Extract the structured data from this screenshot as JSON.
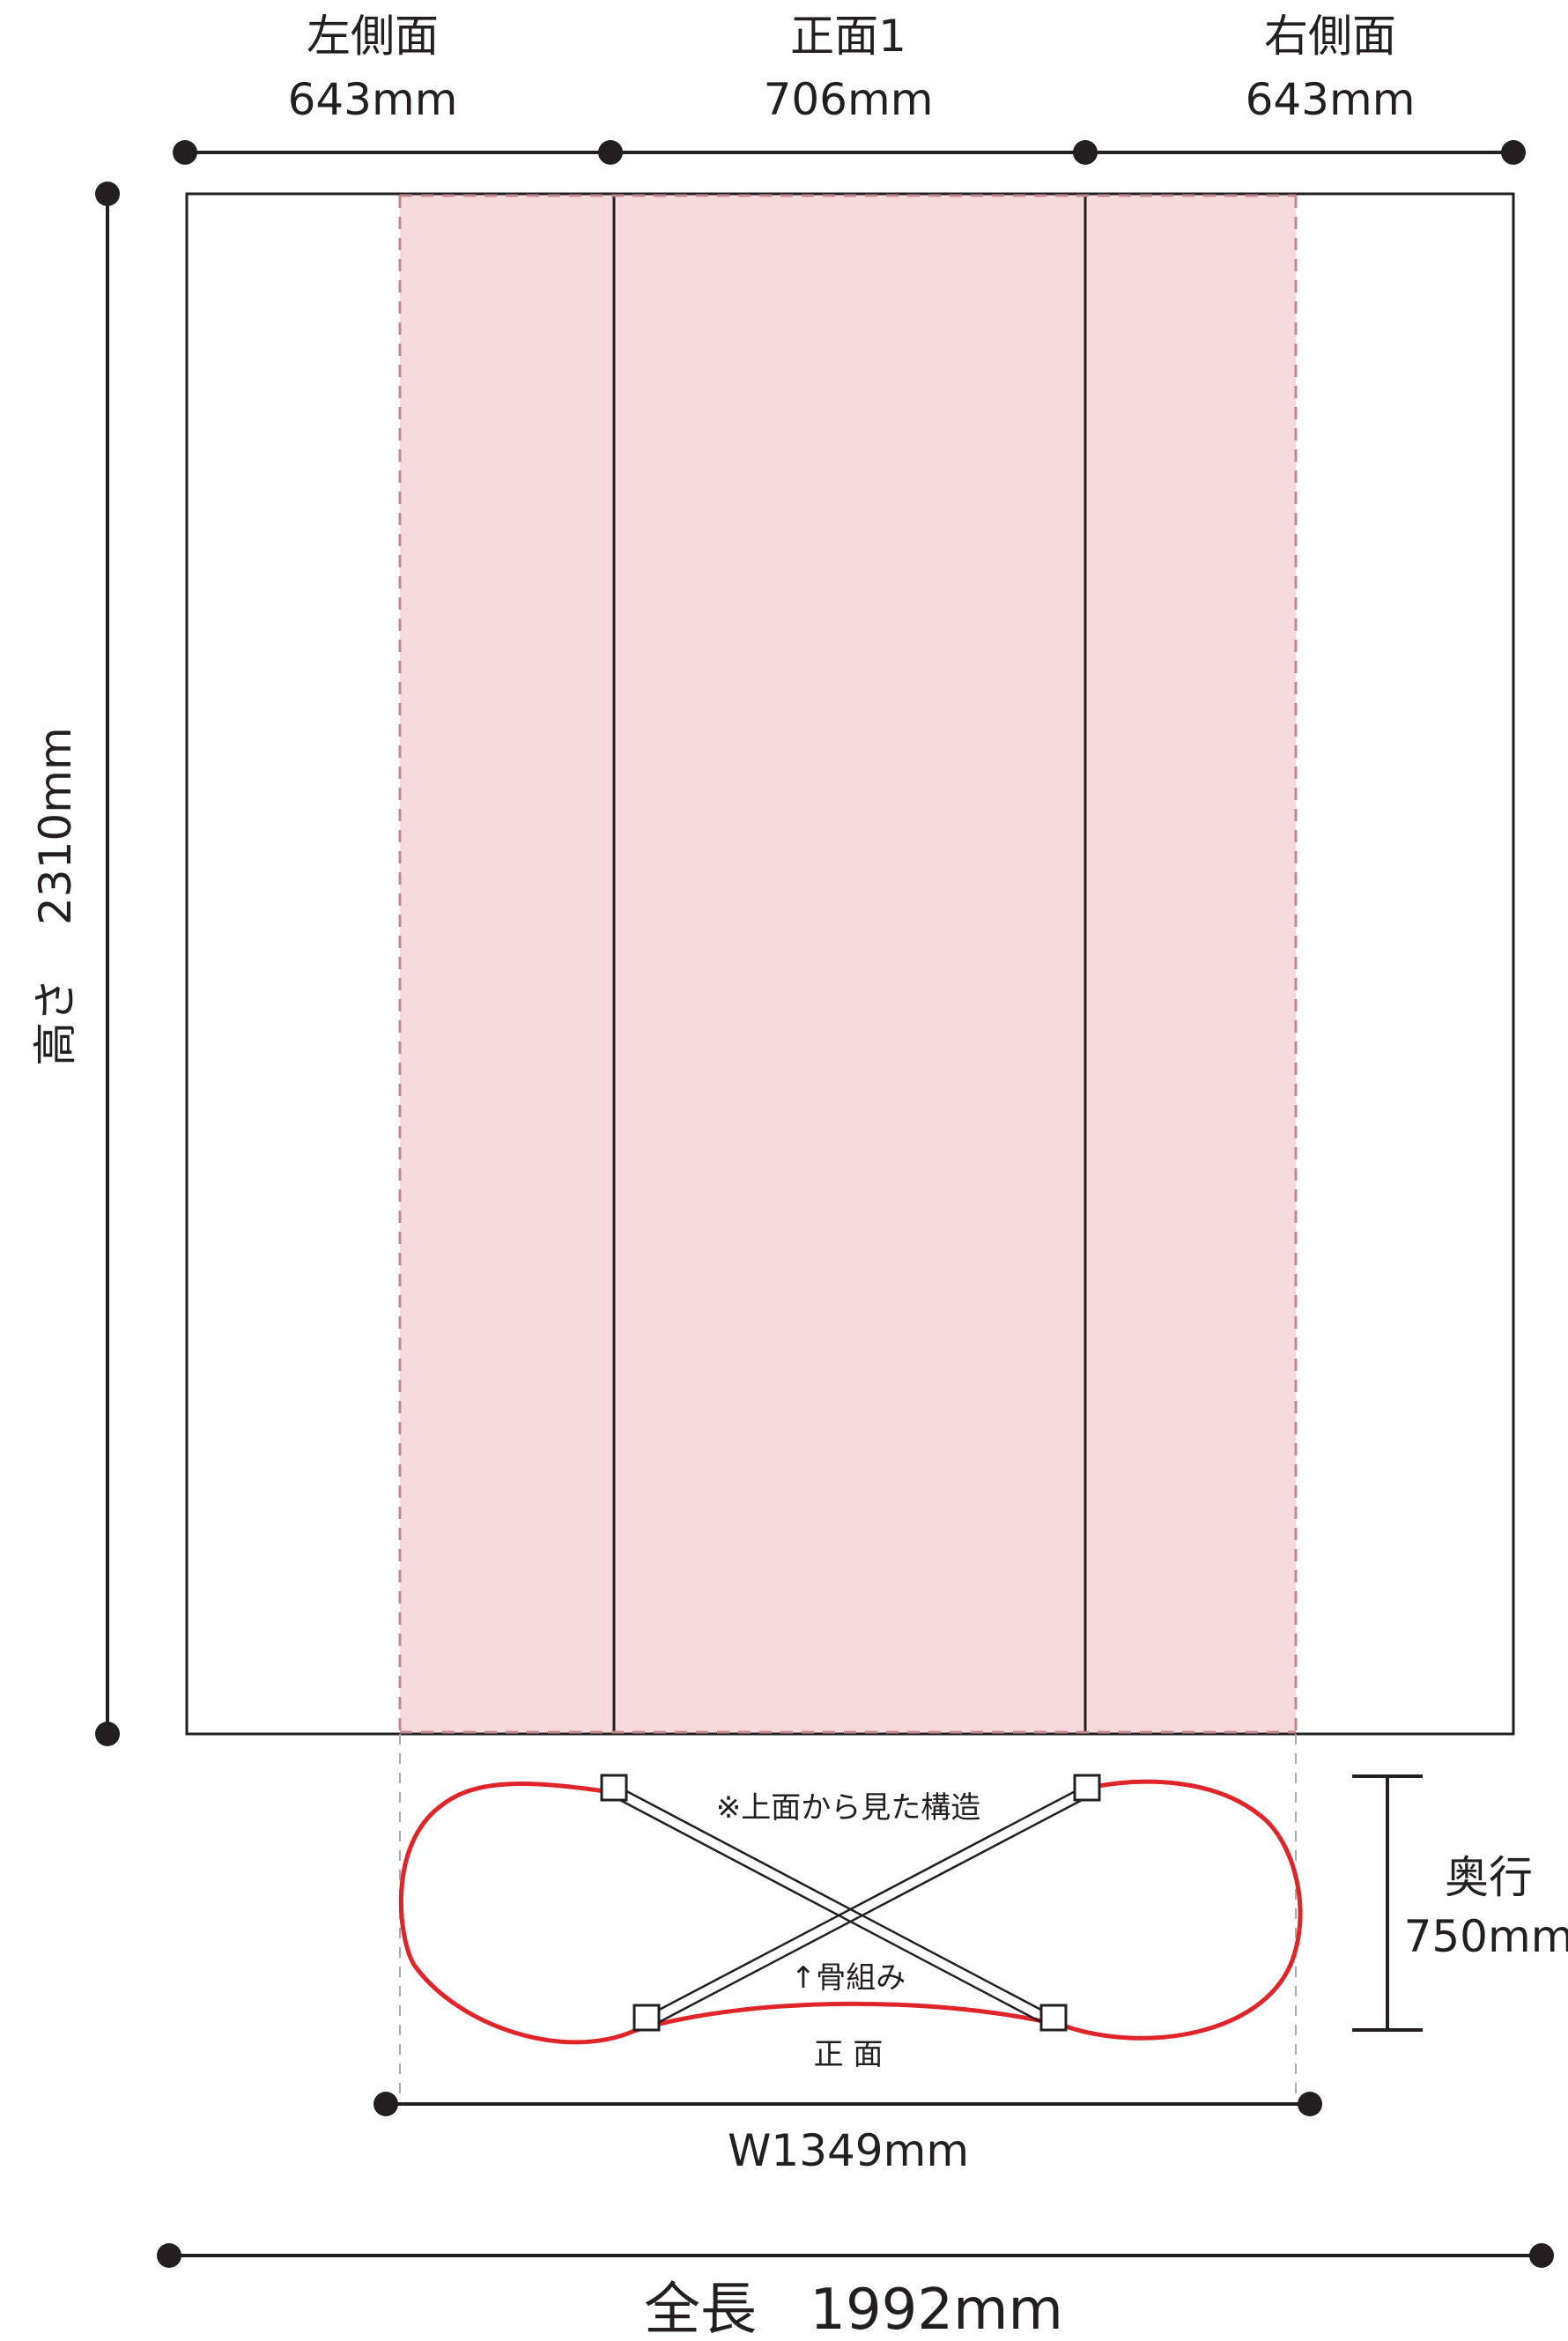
{
  "top_dimensions": {
    "left_side": {
      "label": "左側面",
      "value": "643mm"
    },
    "front": {
      "label": "正面1",
      "value": "706mm"
    },
    "right_side": {
      "label": "右側面",
      "value": "643mm"
    }
  },
  "height_dimension": {
    "label": "高さ",
    "value": "2310mm"
  },
  "top_view": {
    "note": "※上面から見た構造",
    "frame_label": "↑骨組み",
    "front_label": "正 面",
    "width_label": "W1349mm"
  },
  "depth_dimension": {
    "label": "奥行",
    "value": "750mm"
  },
  "total_length": {
    "label": "全長",
    "value": "1992mm"
  },
  "colors": {
    "line": "#231f20",
    "highlight_fill": "#f7dbdc",
    "highlight_border": "#c08a8c",
    "outline_red": "#e0252a",
    "guide_gray": "#a7a9ac"
  }
}
